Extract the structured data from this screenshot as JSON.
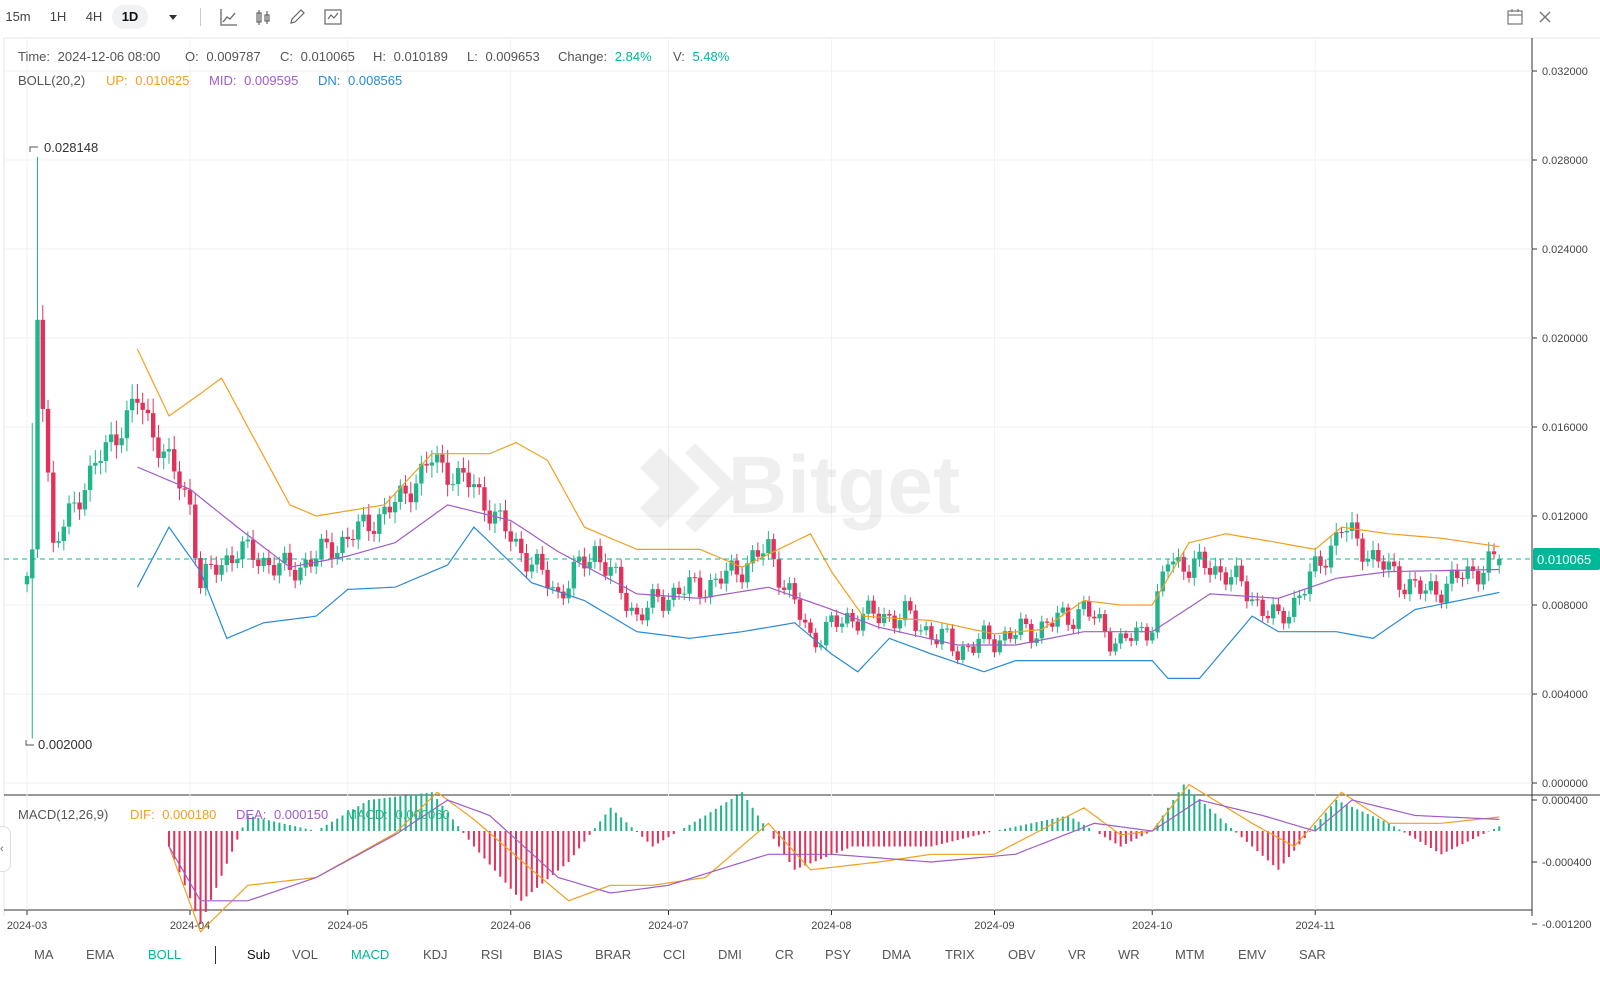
{
  "toolbar": {
    "timeframes": [
      "15m",
      "1H",
      "4H",
      "1D"
    ],
    "active_timeframe": "1D",
    "icons": [
      "chevron-down-icon",
      "line-chart-icon",
      "candle-chart-icon",
      "pencil-icon",
      "indicator-icon",
      "calendar-icon",
      "close-icon"
    ]
  },
  "info": {
    "time_label": "Time:",
    "time": "2024-12-06 08:00",
    "open_label": "O:",
    "open": "0.009787",
    "close_label": "C:",
    "close": "0.010065",
    "high_label": "H:",
    "high": "0.010189",
    "low_label": "L:",
    "low": "0.009653",
    "change_label": "Change:",
    "change": "2.84%",
    "volume_label": "V:",
    "volume": "5.48%"
  },
  "boll": {
    "name": "BOLL(20,2)",
    "up_label": "UP:",
    "up": "0.010625",
    "mid_label": "MID:",
    "mid": "0.009595",
    "dn_label": "DN:",
    "dn": "0.008565"
  },
  "macd": {
    "name": "MACD(12,26,9)",
    "dif_label": "DIF:",
    "dif": "0.000180",
    "dea_label": "DEA:",
    "dea": "0.000150",
    "macd_label": "MACD:",
    "macd": "0.000060"
  },
  "annotations": {
    "max_label": "0.028148",
    "min_label": "0.002000",
    "last_price": "0.010065"
  },
  "watermark": "Bitget",
  "colors": {
    "up": "#22b58b",
    "down": "#e0325a",
    "boll_up": "#f0a020",
    "boll_mid": "#a05cc8",
    "boll_dn": "#2a8ad8",
    "accent": "#00b897"
  },
  "chart_data": [
    {
      "type": "candlestick",
      "title": "",
      "x_ticks": [
        "2024-03",
        "2024-04",
        "2024-05",
        "2024-06",
        "2024-07",
        "2024-08",
        "2024-09",
        "2024-10",
        "2024-11"
      ],
      "y_ticks": [
        "0.032000",
        "0.028000",
        "0.024000",
        "0.020000",
        "0.016000",
        "0.012000",
        "0.008000",
        "0.004000",
        "0.000000"
      ],
      "ylim": [
        0,
        0.032
      ],
      "price_high": 0.028148,
      "price_low": 0.002,
      "last_close": 0.010065,
      "ohlc_anchor_points": [
        {
          "date": "2024-03-01",
          "close": 0.009
        },
        {
          "date": "2024-03-03",
          "close": 0.021
        },
        {
          "date": "2024-03-06",
          "close": 0.0105
        },
        {
          "date": "2024-03-12",
          "close": 0.0135
        },
        {
          "date": "2024-03-22",
          "close": 0.0172
        },
        {
          "date": "2024-04-01",
          "close": 0.0125
        },
        {
          "date": "2024-04-03",
          "close": 0.009
        },
        {
          "date": "2024-04-10",
          "close": 0.0105
        },
        {
          "date": "2024-04-20",
          "close": 0.0095
        },
        {
          "date": "2024-05-01",
          "close": 0.011
        },
        {
          "date": "2024-05-10",
          "close": 0.0125
        },
        {
          "date": "2024-05-17",
          "close": 0.0145
        },
        {
          "date": "2024-05-25",
          "close": 0.0133
        },
        {
          "date": "2024-06-01",
          "close": 0.011
        },
        {
          "date": "2024-06-10",
          "close": 0.0085
        },
        {
          "date": "2024-06-17",
          "close": 0.0105
        },
        {
          "date": "2024-06-25",
          "close": 0.0075
        },
        {
          "date": "2024-07-01",
          "close": 0.0085
        },
        {
          "date": "2024-07-10",
          "close": 0.009
        },
        {
          "date": "2024-07-20",
          "close": 0.0105
        },
        {
          "date": "2024-07-28",
          "close": 0.0065
        },
        {
          "date": "2024-08-05",
          "close": 0.0075
        },
        {
          "date": "2024-08-15",
          "close": 0.0075
        },
        {
          "date": "2024-08-25",
          "close": 0.006
        },
        {
          "date": "2024-09-01",
          "close": 0.0065
        },
        {
          "date": "2024-09-10",
          "close": 0.007
        },
        {
          "date": "2024-09-18",
          "close": 0.0078
        },
        {
          "date": "2024-09-25",
          "close": 0.0062
        },
        {
          "date": "2024-10-01",
          "close": 0.0072
        },
        {
          "date": "2024-10-04",
          "close": 0.01
        },
        {
          "date": "2024-10-15",
          "close": 0.0095
        },
        {
          "date": "2024-10-25",
          "close": 0.0072
        },
        {
          "date": "2024-11-01",
          "close": 0.0095
        },
        {
          "date": "2024-11-06",
          "close": 0.0115
        },
        {
          "date": "2024-11-15",
          "close": 0.0095
        },
        {
          "date": "2024-11-22",
          "close": 0.0085
        },
        {
          "date": "2024-12-06",
          "close": 0.010065
        }
      ],
      "boll_up_points": [
        {
          "date": "2024-03-22",
          "value": 0.0195
        },
        {
          "date": "2024-03-28",
          "value": 0.0165
        },
        {
          "date": "2024-04-03",
          "value": 0.0175
        },
        {
          "date": "2024-04-07",
          "value": 0.0182
        },
        {
          "date": "2024-04-12",
          "value": 0.016
        },
        {
          "date": "2024-04-20",
          "value": 0.0125
        },
        {
          "date": "2024-04-25",
          "value": 0.012
        },
        {
          "date": "2024-05-08",
          "value": 0.0125
        },
        {
          "date": "2024-05-17",
          "value": 0.0148
        },
        {
          "date": "2024-05-28",
          "value": 0.0148
        },
        {
          "date": "2024-06-02",
          "value": 0.0153
        },
        {
          "date": "2024-06-08",
          "value": 0.0145
        },
        {
          "date": "2024-06-15",
          "value": 0.0115
        },
        {
          "date": "2024-06-25",
          "value": 0.0105
        },
        {
          "date": "2024-07-07",
          "value": 0.0105
        },
        {
          "date": "2024-07-15",
          "value": 0.0097
        },
        {
          "date": "2024-07-28",
          "value": 0.0112
        },
        {
          "date": "2024-08-01",
          "value": 0.0095
        },
        {
          "date": "2024-08-07",
          "value": 0.0075
        },
        {
          "date": "2024-08-20",
          "value": 0.0073
        },
        {
          "date": "2024-09-01",
          "value": 0.0067
        },
        {
          "date": "2024-09-10",
          "value": 0.0069
        },
        {
          "date": "2024-09-18",
          "value": 0.0082
        },
        {
          "date": "2024-09-25",
          "value": 0.008
        },
        {
          "date": "2024-10-01",
          "value": 0.008
        },
        {
          "date": "2024-10-08",
          "value": 0.0108
        },
        {
          "date": "2024-10-15",
          "value": 0.0112
        },
        {
          "date": "2024-10-25",
          "value": 0.0108
        },
        {
          "date": "2024-11-01",
          "value": 0.0105
        },
        {
          "date": "2024-11-06",
          "value": 0.0115
        },
        {
          "date": "2024-11-15",
          "value": 0.0112
        },
        {
          "date": "2024-11-25",
          "value": 0.011
        },
        {
          "date": "2024-12-06",
          "value": 0.010625
        }
      ],
      "boll_mid_points": [
        {
          "date": "2024-03-22",
          "value": 0.0142
        },
        {
          "date": "2024-04-01",
          "value": 0.0132
        },
        {
          "date": "2024-04-10",
          "value": 0.0115
        },
        {
          "date": "2024-04-20",
          "value": 0.0097
        },
        {
          "date": "2024-05-01",
          "value": 0.0102
        },
        {
          "date": "2024-05-10",
          "value": 0.0108
        },
        {
          "date": "2024-05-20",
          "value": 0.0125
        },
        {
          "date": "2024-06-01",
          "value": 0.0118
        },
        {
          "date": "2024-06-10",
          "value": 0.0104
        },
        {
          "date": "2024-06-25",
          "value": 0.0085
        },
        {
          "date": "2024-07-07",
          "value": 0.0083
        },
        {
          "date": "2024-07-20",
          "value": 0.0088
        },
        {
          "date": "2024-08-01",
          "value": 0.0078
        },
        {
          "date": "2024-08-10",
          "value": 0.007
        },
        {
          "date": "2024-08-25",
          "value": 0.0062
        },
        {
          "date": "2024-09-05",
          "value": 0.0062
        },
        {
          "date": "2024-09-18",
          "value": 0.0068
        },
        {
          "date": "2024-10-01",
          "value": 0.0068
        },
        {
          "date": "2024-10-12",
          "value": 0.0085
        },
        {
          "date": "2024-10-25",
          "value": 0.0083
        },
        {
          "date": "2024-11-05",
          "value": 0.0092
        },
        {
          "date": "2024-11-15",
          "value": 0.0095
        },
        {
          "date": "2024-12-06",
          "value": 0.009595
        }
      ],
      "boll_dn_points": [
        {
          "date": "2024-03-22",
          "value": 0.0088
        },
        {
          "date": "2024-03-28",
          "value": 0.0115
        },
        {
          "date": "2024-04-03",
          "value": 0.0095
        },
        {
          "date": "2024-04-08",
          "value": 0.0065
        },
        {
          "date": "2024-04-15",
          "value": 0.0072
        },
        {
          "date": "2024-04-25",
          "value": 0.0075
        },
        {
          "date": "2024-05-01",
          "value": 0.0087
        },
        {
          "date": "2024-05-10",
          "value": 0.0088
        },
        {
          "date": "2024-05-20",
          "value": 0.0098
        },
        {
          "date": "2024-05-25",
          "value": 0.0115
        },
        {
          "date": "2024-06-05",
          "value": 0.009
        },
        {
          "date": "2024-06-15",
          "value": 0.0082
        },
        {
          "date": "2024-06-25",
          "value": 0.0068
        },
        {
          "date": "2024-07-05",
          "value": 0.0065
        },
        {
          "date": "2024-07-15",
          "value": 0.0068
        },
        {
          "date": "2024-07-25",
          "value": 0.0072
        },
        {
          "date": "2024-08-01",
          "value": 0.0058
        },
        {
          "date": "2024-08-06",
          "value": 0.005
        },
        {
          "date": "2024-08-12",
          "value": 0.0065
        },
        {
          "date": "2024-08-20",
          "value": 0.0058
        },
        {
          "date": "2024-08-30",
          "value": 0.005
        },
        {
          "date": "2024-09-05",
          "value": 0.0055
        },
        {
          "date": "2024-09-20",
          "value": 0.0055
        },
        {
          "date": "2024-10-01",
          "value": 0.0055
        },
        {
          "date": "2024-10-04",
          "value": 0.0047
        },
        {
          "date": "2024-10-10",
          "value": 0.0047
        },
        {
          "date": "2024-10-20",
          "value": 0.0075
        },
        {
          "date": "2024-10-25",
          "value": 0.0068
        },
        {
          "date": "2024-11-05",
          "value": 0.0068
        },
        {
          "date": "2024-11-12",
          "value": 0.0065
        },
        {
          "date": "2024-11-20",
          "value": 0.0078
        },
        {
          "date": "2024-12-06",
          "value": 0.008565
        }
      ]
    },
    {
      "type": "macd",
      "title": "",
      "y_ticks": [
        "0.000400",
        "-0.000400",
        "-0.001200"
      ],
      "ylim": [
        -0.0013,
        0.0006
      ],
      "dif_points": [
        {
          "date": "2024-03-28",
          "value": -0.0002
        },
        {
          "date": "2024-04-03",
          "value": -0.0013
        },
        {
          "date": "2024-04-12",
          "value": -0.0007
        },
        {
          "date": "2024-04-25",
          "value": -0.0006
        },
        {
          "date": "2024-05-10",
          "value": -3e-05
        },
        {
          "date": "2024-05-18",
          "value": 0.0005
        },
        {
          "date": "2024-05-25",
          "value": 0.00015
        },
        {
          "date": "2024-06-05",
          "value": -0.0005
        },
        {
          "date": "2024-06-12",
          "value": -0.0009
        },
        {
          "date": "2024-06-20",
          "value": -0.0007
        },
        {
          "date": "2024-06-28",
          "value": -0.0007
        },
        {
          "date": "2024-07-08",
          "value": -0.0006
        },
        {
          "date": "2024-07-20",
          "value": 0.0001
        },
        {
          "date": "2024-07-28",
          "value": -0.0005
        },
        {
          "date": "2024-08-10",
          "value": -0.0004
        },
        {
          "date": "2024-08-20",
          "value": -0.0003
        },
        {
          "date": "2024-09-01",
          "value": -0.0003
        },
        {
          "date": "2024-09-18",
          "value": 0.0003
        },
        {
          "date": "2024-09-25",
          "value": -5e-05
        },
        {
          "date": "2024-10-01",
          "value": 0.0
        },
        {
          "date": "2024-10-08",
          "value": 0.0006
        },
        {
          "date": "2024-10-20",
          "value": 0.0001
        },
        {
          "date": "2024-10-28",
          "value": -0.0002
        },
        {
          "date": "2024-11-06",
          "value": 0.0005
        },
        {
          "date": "2024-11-15",
          "value": 0.0001
        },
        {
          "date": "2024-11-25",
          "value": 0.0001
        },
        {
          "date": "2024-12-06",
          "value": 0.00018
        }
      ],
      "dea_points": [
        {
          "date": "2024-03-28",
          "value": -0.0002
        },
        {
          "date": "2024-04-03",
          "value": -0.0009
        },
        {
          "date": "2024-04-12",
          "value": -0.0009
        },
        {
          "date": "2024-04-25",
          "value": -0.0006
        },
        {
          "date": "2024-05-10",
          "value": -5e-05
        },
        {
          "date": "2024-05-20",
          "value": 0.0004
        },
        {
          "date": "2024-05-28",
          "value": 0.0002
        },
        {
          "date": "2024-06-10",
          "value": -0.0006
        },
        {
          "date": "2024-06-20",
          "value": -0.0008
        },
        {
          "date": "2024-07-01",
          "value": -0.0007
        },
        {
          "date": "2024-07-20",
          "value": -0.0003
        },
        {
          "date": "2024-08-01",
          "value": -0.0003
        },
        {
          "date": "2024-08-20",
          "value": -0.0004
        },
        {
          "date": "2024-09-05",
          "value": -0.0003
        },
        {
          "date": "2024-09-20",
          "value": 0.0001
        },
        {
          "date": "2024-10-01",
          "value": 0.0
        },
        {
          "date": "2024-10-10",
          "value": 0.0004
        },
        {
          "date": "2024-10-22",
          "value": 0.0002
        },
        {
          "date": "2024-11-01",
          "value": 0.0
        },
        {
          "date": "2024-11-08",
          "value": 0.0004
        },
        {
          "date": "2024-11-20",
          "value": 0.0002
        },
        {
          "date": "2024-12-06",
          "value": 0.00015
        }
      ],
      "histogram_points": [
        {
          "date": "2024-03-28",
          "value": -0.0002
        },
        {
          "date": "2024-04-03",
          "value": -0.0012
        },
        {
          "date": "2024-04-12",
          "value": 0.0002
        },
        {
          "date": "2024-04-25",
          "value": 0.0
        },
        {
          "date": "2024-05-05",
          "value": 0.0004
        },
        {
          "date": "2024-05-17",
          "value": 0.0005
        },
        {
          "date": "2024-05-25",
          "value": -0.0002
        },
        {
          "date": "2024-06-03",
          "value": -0.0009
        },
        {
          "date": "2024-06-12",
          "value": -0.0004
        },
        {
          "date": "2024-06-20",
          "value": 0.0003
        },
        {
          "date": "2024-06-28",
          "value": -0.0002
        },
        {
          "date": "2024-07-08",
          "value": 0.0002
        },
        {
          "date": "2024-07-15",
          "value": 0.0005
        },
        {
          "date": "2024-07-25",
          "value": -0.0005
        },
        {
          "date": "2024-08-05",
          "value": -0.0002
        },
        {
          "date": "2024-08-20",
          "value": -0.0002
        },
        {
          "date": "2024-09-01",
          "value": 0.0
        },
        {
          "date": "2024-09-15",
          "value": 0.0002
        },
        {
          "date": "2024-09-25",
          "value": -0.0002
        },
        {
          "date": "2024-10-01",
          "value": 0.0
        },
        {
          "date": "2024-10-07",
          "value": 0.0006
        },
        {
          "date": "2024-10-15",
          "value": 0.0001
        },
        {
          "date": "2024-10-25",
          "value": -0.0005
        },
        {
          "date": "2024-11-05",
          "value": 0.0004
        },
        {
          "date": "2024-11-15",
          "value": 0.0001
        },
        {
          "date": "2024-11-25",
          "value": -0.0003
        },
        {
          "date": "2024-12-06",
          "value": 6e-05
        }
      ]
    }
  ],
  "bottom": {
    "main_indicators": [
      "MA",
      "EMA",
      "BOLL"
    ],
    "main_active": "BOLL",
    "sub_label": "Sub",
    "sub_indicators": [
      "VOL",
      "MACD",
      "KDJ",
      "RSI",
      "BIAS",
      "BRAR",
      "CCI",
      "DMI",
      "CR",
      "PSY",
      "DMA",
      "TRIX",
      "OBV",
      "VR",
      "WR",
      "MTM",
      "EMV",
      "SAR"
    ],
    "sub_active": "MACD"
  }
}
